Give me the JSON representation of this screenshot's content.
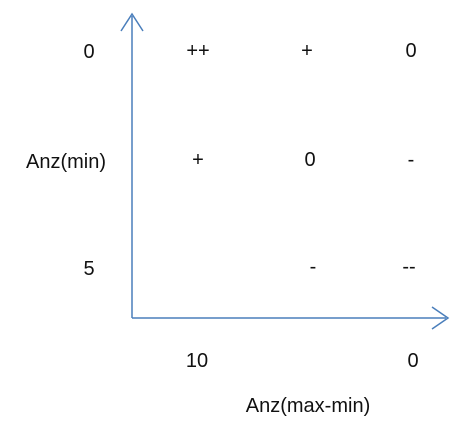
{
  "colors": {
    "axis": "#4a7ebb",
    "text": "#111111",
    "background": "#ffffff"
  },
  "y_axis": {
    "ticks": [
      "0",
      "Anz(min)",
      "5"
    ]
  },
  "x_axis": {
    "ticks": [
      "10",
      "0"
    ],
    "label": "Anz(max-min)"
  },
  "grid": {
    "row_top": [
      "++",
      "+",
      "0"
    ],
    "row_middle": [
      "+",
      "0",
      "-"
    ],
    "row_bottom": [
      "-",
      "--"
    ]
  }
}
